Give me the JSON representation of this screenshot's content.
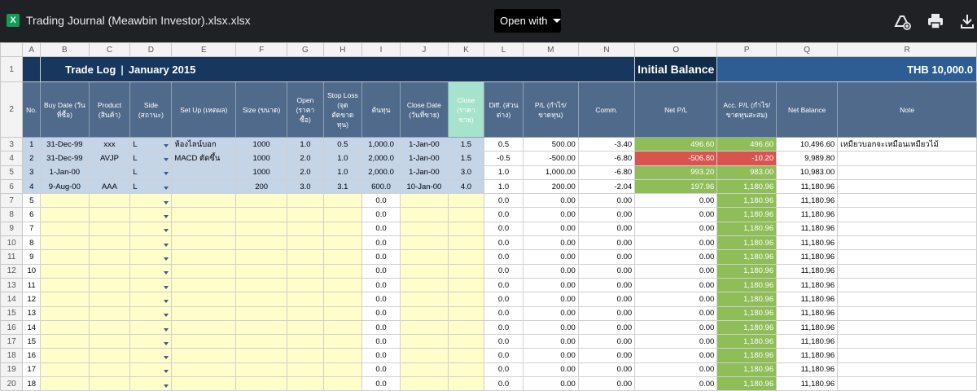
{
  "viewer": {
    "file_icon": "X",
    "title": "Trading Journal (Meawbin Investor).xlsx.xlsx",
    "open_with": "Open with",
    "icons": [
      "add-to-drive-icon",
      "print-icon",
      "download-icon"
    ]
  },
  "columns": [
    "A",
    "B",
    "C",
    "D",
    "E",
    "F",
    "G",
    "H",
    "I",
    "J",
    "K",
    "L",
    "M",
    "N",
    "O",
    "P",
    "Q",
    "R"
  ],
  "title": {
    "part1": "Trade Log",
    "sep": "|",
    "part2": "January 2015"
  },
  "initial_balance": {
    "label": "Initial Balance",
    "value": "THB 10,000.0"
  },
  "headers": {
    "no": "No.",
    "buy_date": "Buy Date (วันที่ซื้อ)",
    "product": "Product (สินค้า)",
    "side": "Side (สถานะ)",
    "setup": "Set Up (เหตผล)",
    "size": "Size (ขนาด)",
    "open": "Open (ราคา ซื้อ)",
    "stop_loss": "Stop Loss (จุดตัดขาดทุน)",
    "cost": "ต้นทุน",
    "close_date": "Close Date (วันที่ขาย)",
    "close": "Close (ราคาขาย)",
    "diff": "Diff. (ส่วนต่าง)",
    "pl": "P/L (กำไร/ขาดทุน)",
    "comm": "Comm.",
    "net_pl": "Net P/L",
    "acc_pl": "Acc. P/L (กำไร/ขาดทุนสะสม)",
    "net_balance": "Net Balance",
    "note": "Note"
  },
  "trades": [
    {
      "row": "3",
      "no": "1",
      "buy_date": "31-Dec-99",
      "product": "xxx",
      "side": "L",
      "setup": "ห้องไลน์บอก",
      "size": "1000",
      "open": "1.0",
      "stop": "0.5",
      "cost": "1,000.0",
      "close_date": "1-Jan-00",
      "close": "1.5",
      "diff": "0.5",
      "pl": "500.00",
      "comm": "-3.40",
      "net_pl": "496.60",
      "net_pl_color": "green",
      "acc_pl": "496.60",
      "acc_color": "green",
      "balance": "10,496.60",
      "note": "เหมียวบอกจะเหมือนเหมียวไม้"
    },
    {
      "row": "4",
      "no": "2",
      "buy_date": "31-Dec-99",
      "product": "AVJP",
      "side": "L",
      "setup": "MACD ตัดขึ้น",
      "size": "1000",
      "open": "2.0",
      "stop": "1.0",
      "cost": "2,000.0",
      "close_date": "1-Jan-00",
      "close": "1.5",
      "diff": "-0.5",
      "pl": "-500.00",
      "comm": "-6.80",
      "net_pl": "-506.80",
      "net_pl_color": "red",
      "acc_pl": "-10.20",
      "acc_color": "red",
      "balance": "9,989.80",
      "note": ""
    },
    {
      "row": "5",
      "no": "3",
      "buy_date": "1-Jan-00",
      "product": "",
      "side": "L",
      "setup": "",
      "size": "1000",
      "open": "2.0",
      "stop": "1.0",
      "cost": "2,000.0",
      "close_date": "1-Jan-00",
      "close": "3.0",
      "diff": "1.0",
      "pl": "1,000.00",
      "comm": "-6.80",
      "net_pl": "993.20",
      "net_pl_color": "green",
      "acc_pl": "983.00",
      "acc_color": "green",
      "balance": "10,983.00",
      "note": ""
    },
    {
      "row": "6",
      "no": "4",
      "buy_date": "9-Aug-00",
      "product": "AAA",
      "side": "L",
      "setup": "",
      "size": "200",
      "open": "3.0",
      "stop": "3.1",
      "cost": "600.0",
      "close_date": "10-Jan-00",
      "close": "4.0",
      "diff": "1.0",
      "pl": "200.00",
      "comm": "-2.04",
      "net_pl": "197.96",
      "net_pl_color": "green",
      "acc_pl": "1,180.96",
      "acc_color": "green",
      "balance": "11,180.96",
      "note": ""
    }
  ],
  "empty_rows": [
    {
      "row": "7",
      "no": "5"
    },
    {
      "row": "8",
      "no": "6"
    },
    {
      "row": "9",
      "no": "7"
    },
    {
      "row": "10",
      "no": "8"
    },
    {
      "row": "11",
      "no": "9"
    },
    {
      "row": "12",
      "no": "10"
    },
    {
      "row": "13",
      "no": "11"
    },
    {
      "row": "14",
      "no": "12"
    },
    {
      "row": "15",
      "no": "13"
    },
    {
      "row": "16",
      "no": "14"
    },
    {
      "row": "17",
      "no": "15"
    },
    {
      "row": "18",
      "no": "16"
    },
    {
      "row": "19",
      "no": "17"
    },
    {
      "row": "20",
      "no": "18"
    }
  ],
  "empty_defaults": {
    "cost": "0.0",
    "diff": "0.0",
    "pl": "0.00",
    "comm": "0.00",
    "net_pl": "0.00",
    "acc_pl": "1,180.96",
    "balance": "11,180.96"
  },
  "row_labels": {
    "r1": "1",
    "r2": "2"
  },
  "colors": {
    "navy": "#17375e",
    "header": "#4f6a8a",
    "blue_row": "#c5d5e8",
    "yellow_row": "#fffdc9",
    "green": "#8fbd58",
    "red": "#d9534f"
  }
}
